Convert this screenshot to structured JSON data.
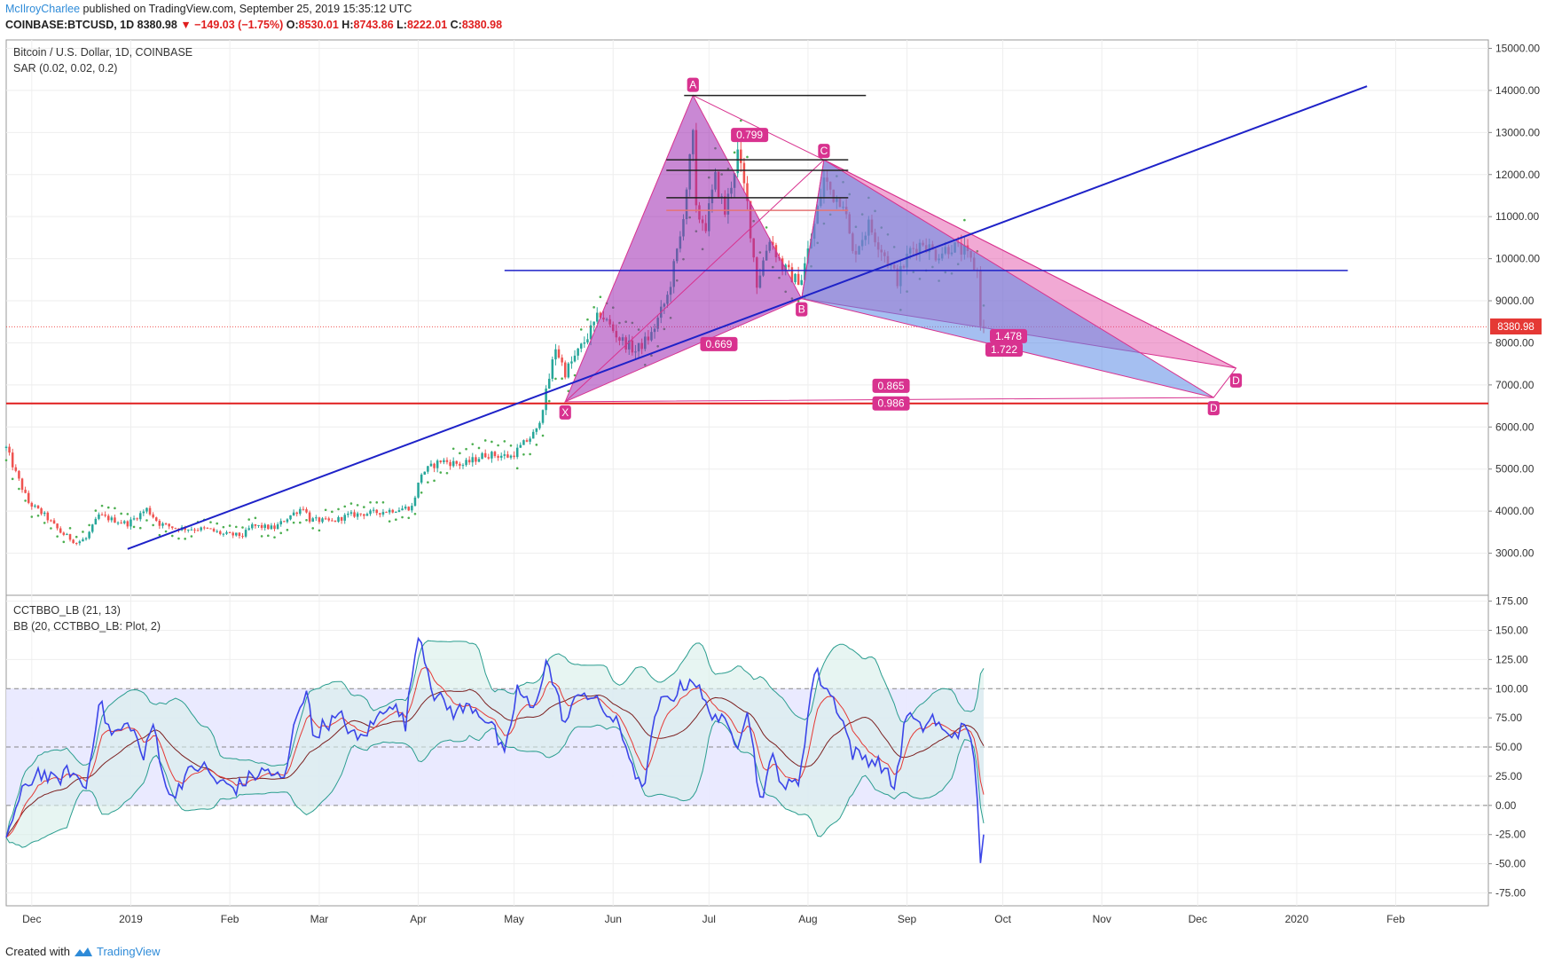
{
  "header": {
    "author": "McIlroyCharlee",
    "published_text": " published on TradingView.com, September 25, 2019 15:35:12 UTC",
    "symbol": "COINBASE:BTCUSD, 1D",
    "price": "8380.98",
    "change": "−149.03 (−1.75%)",
    "o_label": "O:",
    "o_value": "8530.01",
    "h_label": "H:",
    "h_value": "8743.86",
    "l_label": "L:",
    "l_value": "8222.01",
    "c_label": "C:",
    "c_value": "8380.98"
  },
  "main_pane": {
    "title": "Bitcoin / U.S. Dollar, 1D, COINBASE",
    "indicator": "SAR (0.02, 0.02, 0.2)",
    "last_price_label": "8380.98"
  },
  "osc_pane": {
    "indicator1": "CCTBBO_LB (21, 13)",
    "indicator2": "BB (20, CCTBBO_LB: Plot, 2)"
  },
  "footer": {
    "created_with": "Created with",
    "brand": "TradingView"
  },
  "colors": {
    "up": "#26a69a",
    "down": "#ef5350",
    "sar": "#4caf50",
    "trendline": "#1e22c8",
    "support": "#e01e1e",
    "harmonic_fill": "#9c27b0",
    "harmonic_fill2": "#e040a0",
    "harmonic_blue": "#5b8be6",
    "label_bg": "#d8328f",
    "osc_line": "#3b45e8",
    "osc_band_fill": "#e8e8ff",
    "bb_fill": "#d7efea",
    "bb_line": "#2a9d8f",
    "ma_red": "#e53935",
    "ma_dark": "#7b1f1f"
  },
  "chart_data": [
    {
      "type": "candlestick",
      "title": "Bitcoin / U.S. Dollar, 1D, COINBASE",
      "y_axis": {
        "range": [
          2000,
          15200
        ],
        "ticks": [
          "15000.00",
          "14000.00",
          "13000.00",
          "12000.00",
          "11000.00",
          "10000.00",
          "9000.00",
          "8000.00",
          "7000.00",
          "6000.00",
          "5000.00",
          "4000.00",
          "3000.00"
        ]
      },
      "x_axis": {
        "range": [
          "2018-11-23",
          "2020-03-01"
        ],
        "ticks": [
          {
            "date": "2018-12-01",
            "label": "Dec"
          },
          {
            "date": "2019-01-01",
            "label": "2019"
          },
          {
            "date": "2019-02-01",
            "label": "Feb"
          },
          {
            "date": "2019-03-01",
            "label": "Mar"
          },
          {
            "date": "2019-04-01",
            "label": "Apr"
          },
          {
            "date": "2019-05-01",
            "label": "May"
          },
          {
            "date": "2019-06-01",
            "label": "Jun"
          },
          {
            "date": "2019-07-01",
            "label": "Jul"
          },
          {
            "date": "2019-08-01",
            "label": "Aug"
          },
          {
            "date": "2019-09-01",
            "label": "Sep"
          },
          {
            "date": "2019-10-01",
            "label": "Oct"
          },
          {
            "date": "2019-11-01",
            "label": "Nov"
          },
          {
            "date": "2019-12-01",
            "label": "Dec"
          },
          {
            "date": "2020-01-01",
            "label": "2020"
          },
          {
            "date": "2020-02-01",
            "label": "Feb"
          }
        ]
      },
      "close_path": [
        [
          "2018-11-23",
          5500
        ],
        [
          "2018-11-26",
          4900
        ],
        [
          "2018-11-30",
          4200
        ],
        [
          "2018-12-05",
          3900
        ],
        [
          "2018-12-10",
          3500
        ],
        [
          "2018-12-15",
          3250
        ],
        [
          "2018-12-18",
          3350
        ],
        [
          "2018-12-22",
          3900
        ],
        [
          "2018-12-26",
          3800
        ],
        [
          "2018-12-31",
          3700
        ],
        [
          "2019-01-06",
          4050
        ],
        [
          "2019-01-10",
          3700
        ],
        [
          "2019-01-15",
          3600
        ],
        [
          "2019-01-20",
          3580
        ],
        [
          "2019-01-25",
          3570
        ],
        [
          "2019-01-30",
          3450
        ],
        [
          "2019-02-05",
          3420
        ],
        [
          "2019-02-08",
          3650
        ],
        [
          "2019-02-15",
          3600
        ],
        [
          "2019-02-20",
          3900
        ],
        [
          "2019-02-24",
          4100
        ],
        [
          "2019-02-26",
          3800
        ],
        [
          "2019-03-05",
          3750
        ],
        [
          "2019-03-10",
          3900
        ],
        [
          "2019-03-20",
          3980
        ],
        [
          "2019-03-30",
          4100
        ],
        [
          "2019-04-02",
          4900
        ],
        [
          "2019-04-08",
          5200
        ],
        [
          "2019-04-15",
          5100
        ],
        [
          "2019-04-22",
          5350
        ],
        [
          "2019-04-30",
          5300
        ],
        [
          "2019-05-08",
          5900
        ],
        [
          "2019-05-11",
          6800
        ],
        [
          "2019-05-14",
          7900
        ],
        [
          "2019-05-17",
          7300
        ],
        [
          "2019-05-22",
          7900
        ],
        [
          "2019-05-28",
          8700
        ],
        [
          "2019-06-03",
          8100
        ],
        [
          "2019-06-08",
          7800
        ],
        [
          "2019-06-13",
          8200
        ],
        [
          "2019-06-18",
          9100
        ],
        [
          "2019-06-22",
          10500
        ],
        [
          "2019-06-26",
          12900
        ],
        [
          "2019-06-27",
          11100
        ],
        [
          "2019-06-30",
          10800
        ],
        [
          "2019-07-03",
          11900
        ],
        [
          "2019-07-06",
          11100
        ],
        [
          "2019-07-10",
          12500
        ],
        [
          "2019-07-13",
          11300
        ],
        [
          "2019-07-16",
          9400
        ],
        [
          "2019-07-20",
          10500
        ],
        [
          "2019-07-24",
          9800
        ],
        [
          "2019-07-28",
          9500
        ],
        [
          "2019-07-30",
          9550
        ],
        [
          "2019-08-03",
          10800
        ],
        [
          "2019-08-06",
          11900
        ],
        [
          "2019-08-09",
          11500
        ],
        [
          "2019-08-12",
          11400
        ],
        [
          "2019-08-15",
          10100
        ],
        [
          "2019-08-20",
          10800
        ],
        [
          "2019-08-25",
          10100
        ],
        [
          "2019-08-29",
          9500
        ],
        [
          "2019-09-02",
          10200
        ],
        [
          "2019-09-06",
          10400
        ],
        [
          "2019-09-10",
          10100
        ],
        [
          "2019-09-15",
          10300
        ],
        [
          "2019-09-19",
          10150
        ],
        [
          "2019-09-23",
          9700
        ],
        [
          "2019-09-24",
          8500
        ],
        [
          "2019-09-25",
          8381
        ]
      ],
      "last_price": 8380.98,
      "harmonic_pattern": {
        "points": {
          "X": [
            "2019-05-17",
            6600
          ],
          "A": [
            "2019-06-26",
            13880
          ],
          "B": [
            "2019-07-30",
            9050
          ],
          "C": [
            "2019-08-06",
            12350
          ]
        },
        "D_targets": [
          [
            "2019-12-13",
            7400
          ],
          [
            "2019-12-06",
            6700
          ]
        ],
        "ratios": [
          "0.669",
          "0.799",
          "1.478",
          "1.722",
          "0.865",
          "0.986"
        ],
        "labels": [
          "X",
          "A",
          "B",
          "C",
          "D",
          "D"
        ]
      },
      "horizontal_lines": {
        "blue": 9720,
        "red": 6560
      },
      "trendline": [
        [
          "2018-12-31",
          3100
        ],
        [
          "2020-01-23",
          14100
        ]
      ]
    },
    {
      "type": "line",
      "title": "CCTBBO_LB (21, 13)",
      "subtitle": "BB (20, CCTBBO_LB: Plot, 2)",
      "y_axis": {
        "range": [
          -86,
          180
        ],
        "ticks": [
          "175.00",
          "150.00",
          "125.00",
          "100.00",
          "75.00",
          "50.00",
          "25.00",
          "0.00",
          "-25.00",
          "-50.00",
          "-75.00"
        ]
      },
      "levels": [
        100,
        50,
        0
      ],
      "cctbbo_path": [
        [
          "2018-11-23",
          -25
        ],
        [
          "2018-11-28",
          10
        ],
        [
          "2018-12-03",
          30
        ],
        [
          "2018-12-08",
          20
        ],
        [
          "2018-12-13",
          30
        ],
        [
          "2018-12-18",
          15
        ],
        [
          "2018-12-22",
          90
        ],
        [
          "2018-12-26",
          60
        ],
        [
          "2019-01-01",
          70
        ],
        [
          "2019-01-05",
          40
        ],
        [
          "2019-01-08",
          70
        ],
        [
          "2019-01-13",
          5
        ],
        [
          "2019-01-18",
          25
        ],
        [
          "2019-01-23",
          35
        ],
        [
          "2019-01-28",
          20
        ],
        [
          "2019-02-03",
          15
        ],
        [
          "2019-02-08",
          25
        ],
        [
          "2019-02-13",
          30
        ],
        [
          "2019-02-18",
          20
        ],
        [
          "2019-02-22",
          80
        ],
        [
          "2019-02-25",
          100
        ],
        [
          "2019-02-27",
          60
        ],
        [
          "2019-03-03",
          70
        ],
        [
          "2019-03-08",
          75
        ],
        [
          "2019-03-13",
          55
        ],
        [
          "2019-03-18",
          70
        ],
        [
          "2019-03-23",
          90
        ],
        [
          "2019-03-28",
          70
        ],
        [
          "2019-04-01",
          150
        ],
        [
          "2019-04-06",
          95
        ],
        [
          "2019-04-12",
          80
        ],
        [
          "2019-04-18",
          85
        ],
        [
          "2019-04-24",
          70
        ],
        [
          "2019-04-28",
          40
        ],
        [
          "2019-05-02",
          100
        ],
        [
          "2019-05-07",
          80
        ],
        [
          "2019-05-11",
          125
        ],
        [
          "2019-05-17",
          70
        ],
        [
          "2019-05-22",
          100
        ],
        [
          "2019-05-28",
          85
        ],
        [
          "2019-06-02",
          70
        ],
        [
          "2019-06-06",
          45
        ],
        [
          "2019-06-10",
          10
        ],
        [
          "2019-06-15",
          85
        ],
        [
          "2019-06-20",
          95
        ],
        [
          "2019-06-26",
          110
        ],
        [
          "2019-06-30",
          85
        ],
        [
          "2019-07-04",
          75
        ],
        [
          "2019-07-10",
          55
        ],
        [
          "2019-07-13",
          85
        ],
        [
          "2019-07-17",
          5
        ],
        [
          "2019-07-21",
          40
        ],
        [
          "2019-07-25",
          15
        ],
        [
          "2019-07-29",
          20
        ],
        [
          "2019-08-03",
          115
        ],
        [
          "2019-08-07",
          100
        ],
        [
          "2019-08-11",
          80
        ],
        [
          "2019-08-15",
          45
        ],
        [
          "2019-08-20",
          40
        ],
        [
          "2019-08-24",
          35
        ],
        [
          "2019-08-28",
          15
        ],
        [
          "2019-09-01",
          80
        ],
        [
          "2019-09-05",
          65
        ],
        [
          "2019-09-09",
          75
        ],
        [
          "2019-09-13",
          60
        ],
        [
          "2019-09-18",
          65
        ],
        [
          "2019-09-21",
          60
        ],
        [
          "2019-09-23",
          10
        ],
        [
          "2019-09-24",
          -45
        ],
        [
          "2019-09-25",
          -25
        ]
      ]
    }
  ]
}
